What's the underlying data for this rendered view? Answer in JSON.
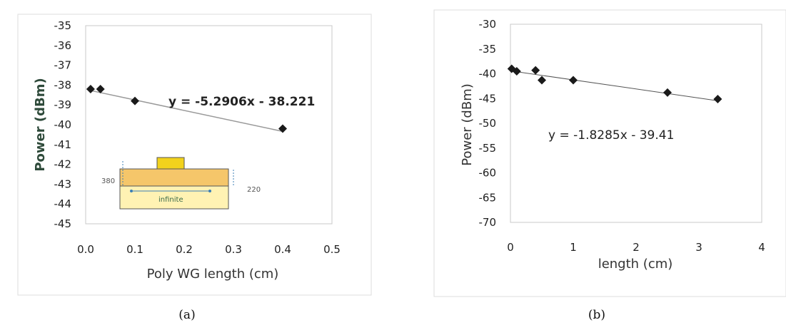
{
  "chart_data": [
    {
      "type": "scatter",
      "panel_label": "(a)",
      "xlabel": "Poly WG length (cm)",
      "ylabel": "Power (dBm)",
      "xlim": [
        0,
        0.5
      ],
      "ylim": [
        -45,
        -35
      ],
      "xticks": [
        "0.0",
        "0.1",
        "0.2",
        "0.3",
        "0.4",
        "0.5"
      ],
      "yticks": [
        "-35",
        "-36",
        "-37",
        "-38",
        "-39",
        "-40",
        "-41",
        "-42",
        "-43",
        "-44",
        "-45"
      ],
      "points": [
        {
          "x": 0.01,
          "y": -38.2
        },
        {
          "x": 0.03,
          "y": -38.2
        },
        {
          "x": 0.1,
          "y": -38.8
        },
        {
          "x": 0.4,
          "y": -40.2
        }
      ],
      "trendline": {
        "slope": -5.2906,
        "intercept": -38.221
      },
      "equation": "y = -5.2906x - 38.221",
      "grid": false,
      "inset": {
        "left_label": "380",
        "right_label": "220",
        "bottom_label": "infinite"
      }
    },
    {
      "type": "scatter",
      "panel_label": "(b)",
      "xlabel": "length (cm)",
      "ylabel": "Power (dBm)",
      "xlim": [
        0,
        4
      ],
      "ylim": [
        -70,
        -30
      ],
      "xticks": [
        "0",
        "1",
        "2",
        "3",
        "4"
      ],
      "yticks": [
        "-30",
        "-35",
        "-40",
        "-45",
        "-50",
        "-55",
        "-60",
        "-65",
        "-70"
      ],
      "points": [
        {
          "x": 0.02,
          "y": -39.0
        },
        {
          "x": 0.1,
          "y": -39.5
        },
        {
          "x": 0.4,
          "y": -39.3
        },
        {
          "x": 0.5,
          "y": -41.3
        },
        {
          "x": 1.0,
          "y": -41.3
        },
        {
          "x": 2.5,
          "y": -43.8
        },
        {
          "x": 3.3,
          "y": -45.1
        }
      ],
      "trendline": {
        "slope": -1.8285,
        "intercept": -39.41
      },
      "equation": "y = -1.8285x - 39.41",
      "grid": false
    }
  ]
}
